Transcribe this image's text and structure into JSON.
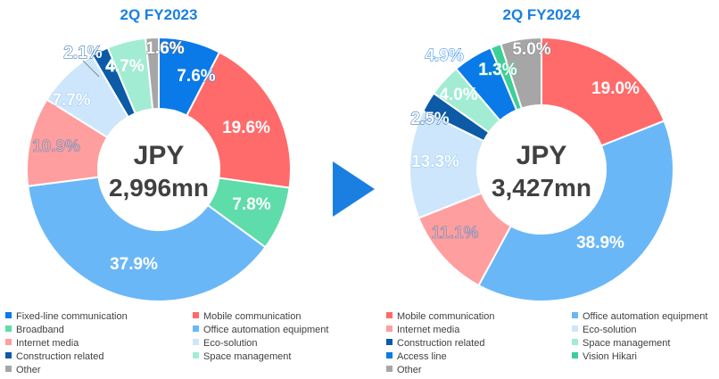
{
  "chart_data": [
    {
      "type": "pie",
      "title": "2Q FY2023",
      "center_label": [
        "JPY",
        "2,996mn"
      ],
      "slices": [
        {
          "name": "Fixed-line communication",
          "value": 7.6,
          "label": "7.6%",
          "color": "#0a7ae8"
        },
        {
          "name": "Mobile communication",
          "value": 19.6,
          "label": "19.6%",
          "color": "#ff6b6b"
        },
        {
          "name": "Broadband",
          "value": 7.8,
          "label": "7.8%",
          "color": "#5edca9"
        },
        {
          "name": "Office automation equipment",
          "value": 37.9,
          "label": "37.9%",
          "color": "#6ab7f7"
        },
        {
          "name": "Internet media",
          "value": 10.9,
          "label": "10.9%",
          "color": "#ff9e9e"
        },
        {
          "name": "Eco-solution",
          "value": 7.7,
          "label": "7.7%",
          "color": "#cde6fb"
        },
        {
          "name": "Construction related",
          "value": 2.1,
          "label": "2.1%",
          "color": "#0d5aa7"
        },
        {
          "name": "Space management",
          "value": 4.7,
          "label": "4.7%",
          "color": "#a2ecd3"
        },
        {
          "name": "Other",
          "value": 1.6,
          "label": "1.6%",
          "color": "#a6a6a6"
        }
      ],
      "legend": [
        "Fixed-line communication",
        "Mobile communication",
        "Broadband",
        "Office automation equipment",
        "Internet media",
        "Eco-solution",
        "Construction related",
        "Space management",
        "Other"
      ]
    },
    {
      "type": "pie",
      "title": "2Q FY2024",
      "center_label": [
        "JPY",
        "3,427mn"
      ],
      "slices": [
        {
          "name": "Mobile communication",
          "value": 19.0,
          "label": "19.0%",
          "color": "#ff6b6b"
        },
        {
          "name": "Office automation equipment",
          "value": 38.9,
          "label": "38.9%",
          "color": "#6ab7f7"
        },
        {
          "name": "Internet media",
          "value": 11.1,
          "label": "11.1%",
          "color": "#ff9e9e"
        },
        {
          "name": "Eco-solution",
          "value": 13.3,
          "label": "13.3%",
          "color": "#cde6fb"
        },
        {
          "name": "Construction related",
          "value": 2.5,
          "label": "2.5%",
          "color": "#0d5aa7"
        },
        {
          "name": "Space management",
          "value": 4.0,
          "label": "4.0%",
          "color": "#a2ecd3"
        },
        {
          "name": "Access line",
          "value": 4.9,
          "label": "4.9%",
          "color": "#0a7ae8"
        },
        {
          "name": "Vision Hikari",
          "value": 1.3,
          "label": "1.3%",
          "color": "#3ecf98"
        },
        {
          "name": "Other",
          "value": 5.0,
          "label": "5.0%",
          "color": "#a6a6a6"
        }
      ],
      "legend": [
        "Mobile communication",
        "Office automation equipment",
        "Internet media",
        "Eco-solution",
        "Construction related",
        "Space management",
        "Access line",
        "Vision Hikari",
        "Other"
      ]
    }
  ],
  "colors": {
    "title": "#1a7fe0",
    "arrow": "#1a7fe0",
    "center_text": "#404040",
    "legend_text": "#404040"
  }
}
